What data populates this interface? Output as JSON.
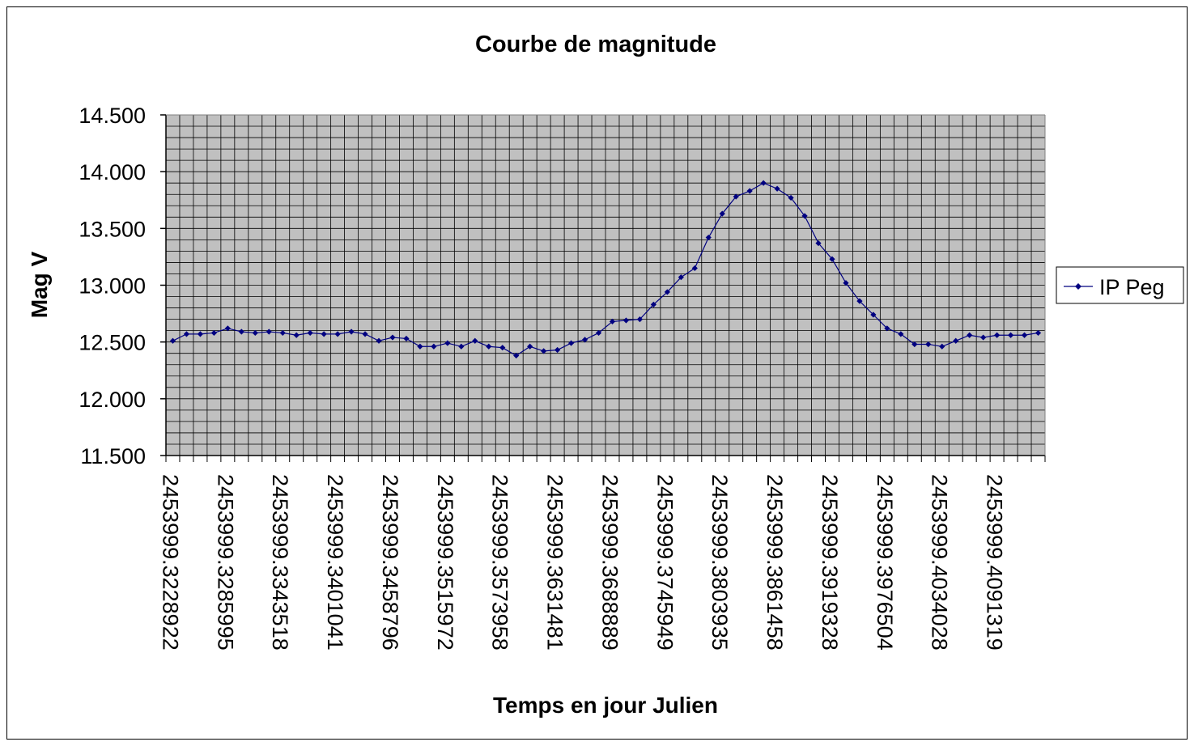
{
  "chart_data": {
    "type": "line",
    "title": "Courbe de magnitude",
    "xlabel": "Temps en jour Julien",
    "ylabel": "Mag V",
    "ylim": [
      11.5,
      14.5
    ],
    "yticks": [
      "14.500",
      "14.000",
      "13.500",
      "13.000",
      "12.500",
      "12.000",
      "11.500"
    ],
    "ytick_values": [
      14.5,
      14.0,
      13.5,
      13.0,
      12.5,
      12.0,
      11.5
    ],
    "x_tick_labels": [
      {
        "index": 0,
        "label": "2453999.3228922"
      },
      {
        "index": 4,
        "label": "2453999.3285995"
      },
      {
        "index": 8,
        "label": "2453999.3343518"
      },
      {
        "index": 12,
        "label": "2453999.3401041"
      },
      {
        "index": 16,
        "label": "2453999.3458796"
      },
      {
        "index": 20,
        "label": "2453999.3515972"
      },
      {
        "index": 24,
        "label": "2453999.3573958"
      },
      {
        "index": 28,
        "label": "2453999.3631481"
      },
      {
        "index": 32,
        "label": "2453999.3688889"
      },
      {
        "index": 36,
        "label": "2453999.3745949"
      },
      {
        "index": 40,
        "label": "2453999.3803935"
      },
      {
        "index": 44,
        "label": "2453999.3861458"
      },
      {
        "index": 48,
        "label": "2453999.3919328"
      },
      {
        "index": 52,
        "label": "2453999.3976504"
      },
      {
        "index": 56,
        "label": "2453999.4034028"
      },
      {
        "index": 60,
        "label": "2453999.4091319"
      }
    ],
    "point_count": 64,
    "grid": true,
    "legend_position": "right",
    "series": [
      {
        "name": "IP Peg",
        "color": "#000080",
        "values": [
          12.51,
          12.57,
          12.57,
          12.58,
          12.62,
          12.59,
          12.58,
          12.59,
          12.58,
          12.56,
          12.58,
          12.57,
          12.57,
          12.59,
          12.57,
          12.51,
          12.54,
          12.53,
          12.46,
          12.46,
          12.49,
          12.46,
          12.51,
          12.46,
          12.45,
          12.38,
          12.46,
          12.42,
          12.43,
          12.49,
          12.52,
          12.58,
          12.68,
          12.69,
          12.7,
          12.83,
          12.94,
          13.07,
          13.15,
          13.42,
          13.63,
          13.78,
          13.83,
          13.9,
          13.85,
          13.77,
          13.61,
          13.37,
          13.23,
          13.02,
          12.86,
          12.74,
          12.62,
          12.57,
          12.48,
          12.48,
          12.46,
          12.51,
          12.56,
          12.54,
          12.56,
          12.56,
          12.56,
          12.58
        ]
      }
    ],
    "plot_bg": "#c0c0c0",
    "grid_color": "#000000"
  }
}
